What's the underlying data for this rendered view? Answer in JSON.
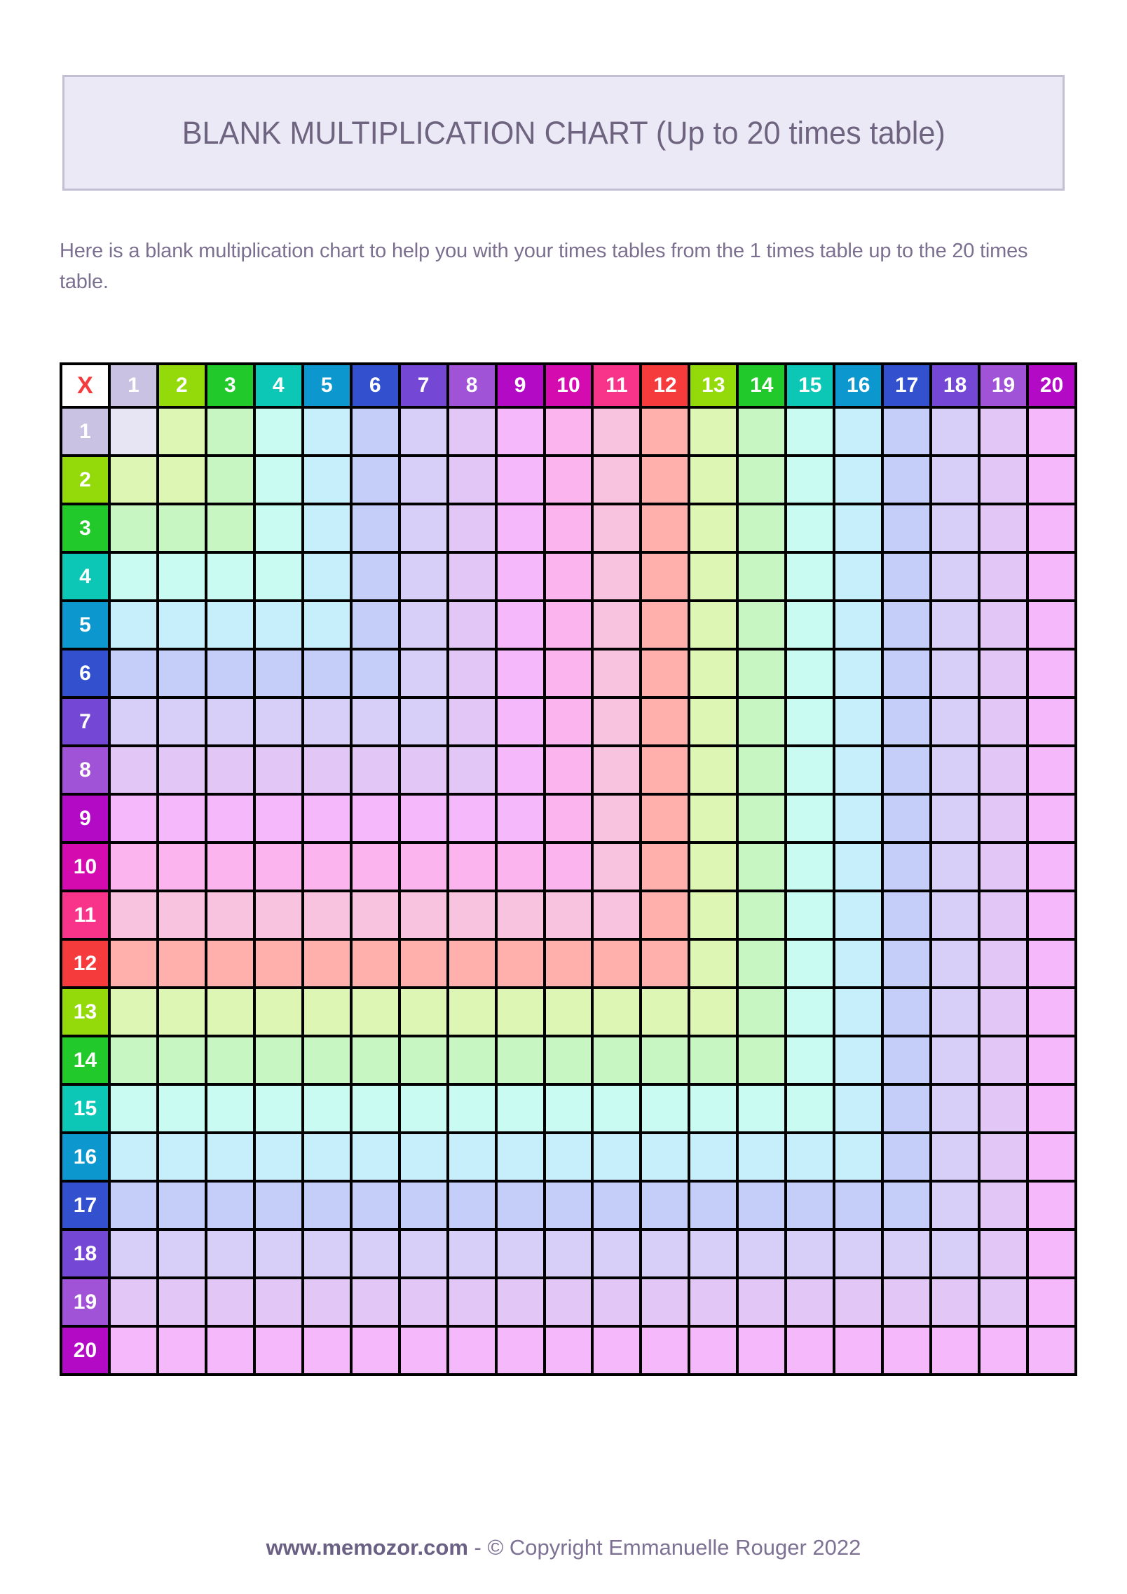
{
  "page": {
    "title": "BLANK MULTIPLICATION CHART (Up to 20 times table)",
    "description": "Here is a blank multiplication chart to help you with your times tables from the 1 times table up to the 20 times table.",
    "footer": {
      "site": "www.memozor.com",
      "separator": " - ",
      "copyright": "© Copyright Emmanuelle Rouger 2022"
    }
  },
  "table": {
    "corner_label": "X",
    "corner_text_color": "#f53b3b",
    "corner_background": "#ffffff",
    "grid_line_color": "#000000",
    "column_headers": [
      "1",
      "2",
      "3",
      "4",
      "5",
      "6",
      "7",
      "8",
      "9",
      "10",
      "11",
      "12",
      "13",
      "14",
      "15",
      "16",
      "17",
      "18",
      "19",
      "20"
    ],
    "row_headers": [
      "1",
      "2",
      "3",
      "4",
      "5",
      "6",
      "7",
      "8",
      "9",
      "10",
      "11",
      "12",
      "13",
      "14",
      "15",
      "16",
      "17",
      "18",
      "19",
      "20"
    ],
    "blank_cell_text": "",
    "color_index": [
      1,
      2,
      3,
      4,
      5,
      6,
      7,
      8,
      9,
      10,
      11,
      12,
      2,
      3,
      4,
      5,
      6,
      7,
      8,
      9
    ],
    "palette": [
      {
        "family": 1,
        "header": "#c9c2e2",
        "pale": "#e7e4f3"
      },
      {
        "family": 2,
        "header": "#94d90a",
        "pale": "#ddf6b3"
      },
      {
        "family": 3,
        "header": "#21c92b",
        "pale": "#c7f6c3"
      },
      {
        "family": 4,
        "header": "#0cc7b5",
        "pale": "#c9fbf2"
      },
      {
        "family": 5,
        "header": "#0c98ce",
        "pale": "#c6eefb"
      },
      {
        "family": 6,
        "header": "#3351cf",
        "pale": "#c5cef8"
      },
      {
        "family": 7,
        "header": "#7448d4",
        "pale": "#d7cff8"
      },
      {
        "family": 8,
        "header": "#a153d8",
        "pale": "#e2c6f6"
      },
      {
        "family": 9,
        "header": "#b30ac6",
        "pale": "#f5b8fa"
      },
      {
        "family": 10,
        "header": "#d40cb0",
        "pale": "#fcb4ee"
      },
      {
        "family": 11,
        "header": "#f8338a",
        "pale": "#f7c3de"
      },
      {
        "family": 12,
        "header": "#f53b3b",
        "pale": "#ffafac"
      }
    ],
    "header_text_color": "#ffffff"
  }
}
